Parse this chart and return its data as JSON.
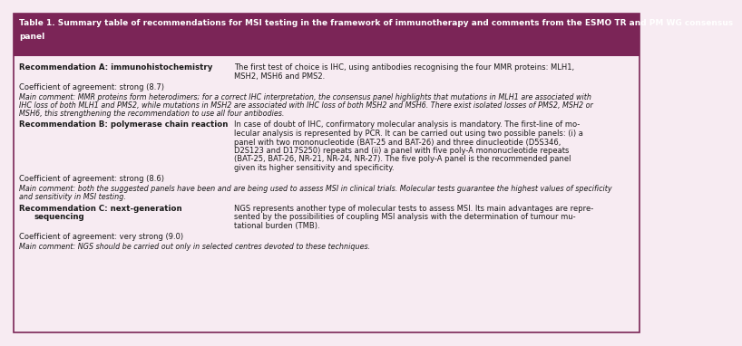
{
  "title_line1": "Table 1. Summary table of recommendations for MSI testing in the framework of immunotherapy and comments from the ESMO TR and PM WG consensus",
  "title_line2": "panel",
  "title_bg": "#7B2557",
  "title_color": "#FFFFFF",
  "bg_color": "#F7EBF2",
  "border_color": "#7B2557",
  "text_color": "#1a1a1a",
  "sections": [
    {
      "bold_left": "Recommendation A: immunohistochemistry",
      "bold_left2": null,
      "right": "The first test of choice is IHC, using antibodies recognising the four MMR proteins: MLH1,\nMSH2, MSH6 and PMS2.",
      "coeff": "Coefficient of agreement: strong (8.7)",
      "comment_lines": [
        "Main comment: MMR proteins form heterodimers; for a correct IHC interpretation, the consensus panel highlights that mutations in MLH1 are associated with",
        "IHC loss of both MLH1 and PMS2, while mutations in MSH2 are associated with IHC loss of both MSH2 and MSH6. There exist isolated losses of PMS2, MSH2 or",
        "MSH6, this strengthening the recommendation to use all four antibodies."
      ]
    },
    {
      "bold_left": "Recommendation B: polymerase chain reaction",
      "bold_left2": null,
      "right": "In case of doubt of IHC, confirmatory molecular analysis is mandatory. The first-line of mo-\nlecular analysis is represented by PCR. It can be carried out using two possible panels: (i) a\npanel with two mononucleotide (BAT-25 and BAT-26) and three dinucleotide (D5S346,\nD2S123 and D17S250) repeats and (ii) a panel with five poly-A mononucleotide repeats\n(BAT-25, BAT-26, NR-21, NR-24, NR-27). The five poly-A panel is the recommended panel\ngiven its higher sensitivity and specificity.",
      "coeff": "Coefficient of agreement: strong (8.6)",
      "comment_lines": [
        "Main comment: both the suggested panels have been and are being used to assess MSI in clinical trials. Molecular tests guarantee the highest values of specificity",
        "and sensitivity in MSI testing."
      ]
    },
    {
      "bold_left": "Recommendation C: next-generation",
      "bold_left2": "sequencing",
      "right": "NGS represents another type of molecular tests to assess MSI. Its main advantages are repre-\nsented by the possibilities of coupling MSI analysis with the determination of tumour mu-\ntational burden (TMB).",
      "coeff": "Coefficient of agreement: very strong (9.0)",
      "comment_lines": [
        "Main comment: NGS should be carried out only in selected centres devoted to these techniques."
      ]
    }
  ]
}
